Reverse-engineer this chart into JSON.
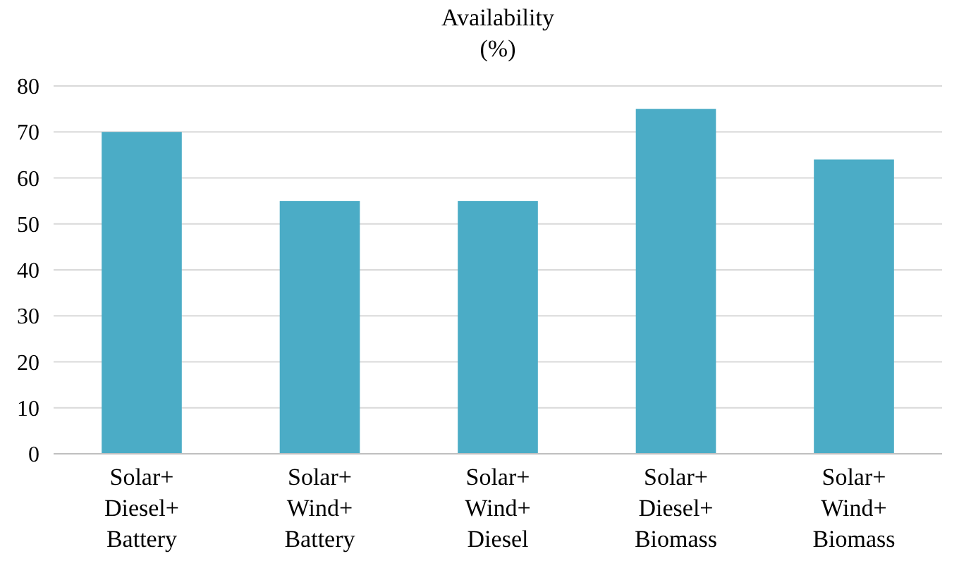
{
  "chart_data": {
    "type": "bar",
    "title": "Availability\n(%)",
    "categories": [
      "Solar+\nDiesel+\nBattery",
      "Solar+\nWind+\nBattery",
      "Solar+\nWind+\nDiesel",
      "Solar+\nDiesel+\nBiomass",
      "Solar+\nWind+\nBiomass"
    ],
    "values": [
      70,
      55,
      55,
      75,
      64
    ],
    "color": "#4bacc6",
    "ylim": [
      0,
      80
    ],
    "yticks": [
      0,
      10,
      20,
      30,
      40,
      50,
      60,
      70,
      80
    ],
    "grid": "y"
  }
}
